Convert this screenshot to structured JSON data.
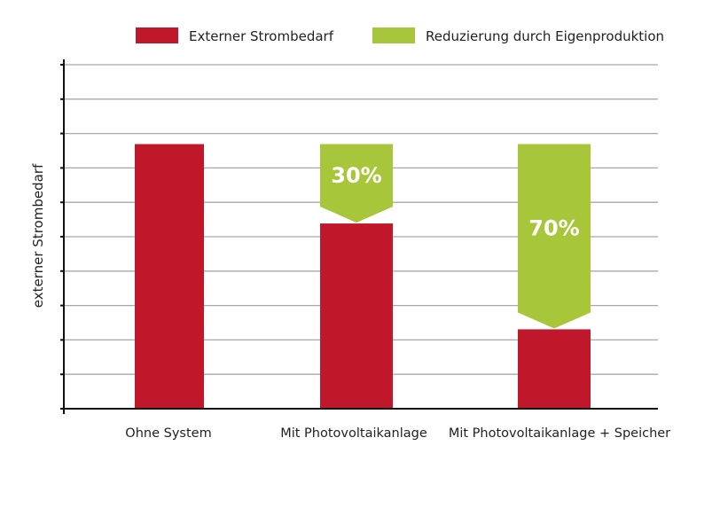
{
  "chart_data": {
    "type": "bar",
    "title": "",
    "xlabel": "",
    "ylabel": "externer Strombedarf",
    "categories": [
      "Ohne System",
      "Mit Photovoltaikanlage",
      "Mit Photovoltaikanlage + Speicher"
    ],
    "series": [
      {
        "name": "Externer Strombedarf",
        "color": "#c0182a",
        "values": [
          100,
          70,
          30
        ]
      },
      {
        "name": "Reduzierung durch Eigenproduktion",
        "color": "#a8c63a",
        "values": [
          0,
          30,
          70
        ],
        "labels": [
          "",
          "30%",
          "70%"
        ]
      }
    ],
    "ylim": [
      0,
      130
    ],
    "grid": true,
    "y_ticks_shown": false,
    "legend_position": "top"
  }
}
